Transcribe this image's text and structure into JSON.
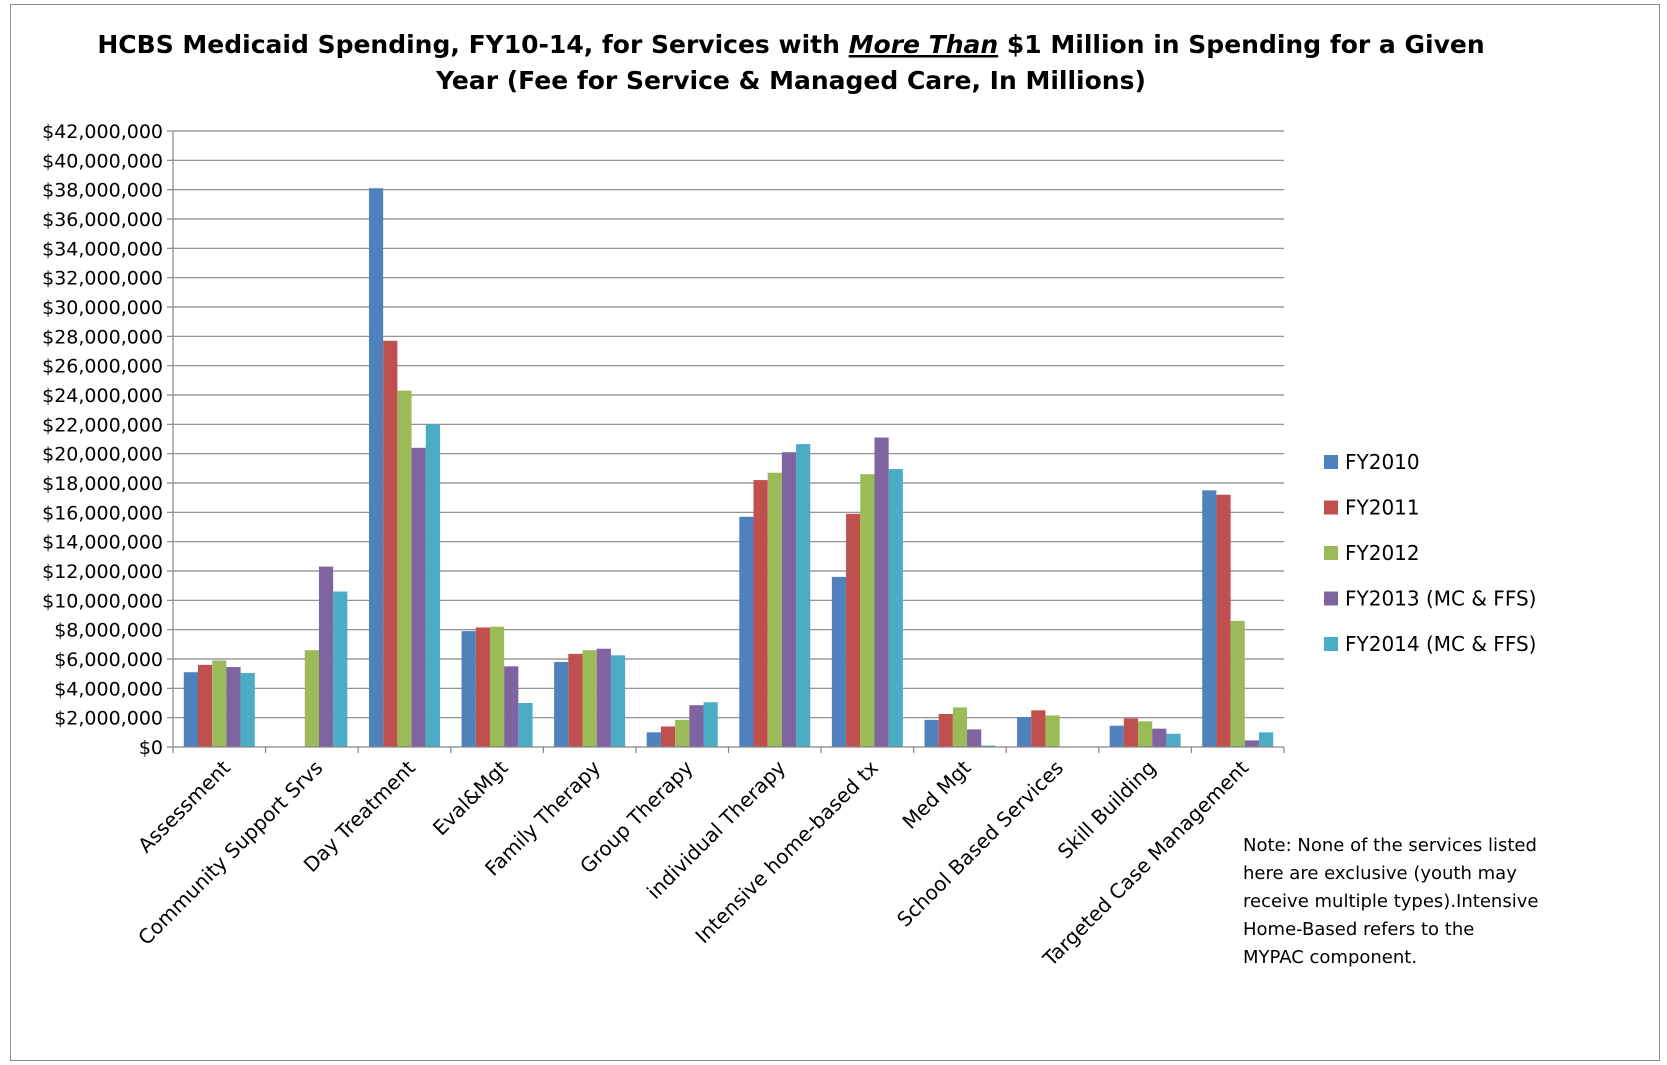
{
  "chart_data": {
    "type": "bar",
    "title_lines": [
      {
        "parts": [
          {
            "text": "HCBS Medicaid Spending, FY10-14, for Services with ",
            "emphasis": false
          },
          {
            "text": "More Than",
            "emphasis": true
          },
          {
            "text": " $1 Million in Spending for a Given",
            "emphasis": false
          }
        ]
      },
      {
        "parts": [
          {
            "text": "Year (Fee for Service & Managed Care, In Millions)",
            "emphasis": false
          }
        ]
      }
    ],
    "xlabel": "",
    "ylabel": "",
    "ylim": [
      0,
      42000000
    ],
    "ytick_step": 2000000,
    "grid": true,
    "legend_position": "right",
    "categories": [
      "Assessment",
      "Community Support Srvs",
      "Day Treatment",
      "Eval&Mgt",
      "Family Therapy",
      "Group Therapy",
      "individual Therapy",
      "Intensive home-based tx",
      "Med Mgt",
      "School Based Services",
      "Skill Building",
      "Targeted Case Management"
    ],
    "series": [
      {
        "name": "FY2010",
        "color": "#4F81BD",
        "values": [
          5100000,
          0,
          38100000,
          7900000,
          5800000,
          1000000,
          15700000,
          11600000,
          1850000,
          2050000,
          1450000,
          17500000
        ]
      },
      {
        "name": "FY2011",
        "color": "#C0504D",
        "values": [
          5600000,
          0,
          27700000,
          8150000,
          6350000,
          1400000,
          18200000,
          15900000,
          2250000,
          2500000,
          1950000,
          17200000
        ]
      },
      {
        "name": "FY2012",
        "color": "#9BBB59",
        "values": [
          5900000,
          6600000,
          24300000,
          8200000,
          6600000,
          1850000,
          18700000,
          18600000,
          2700000,
          2150000,
          1750000,
          8600000
        ]
      },
      {
        "name": "FY2013 (MC & FFS)",
        "color": "#8064A2",
        "values": [
          5450000,
          12300000,
          20400000,
          5500000,
          6700000,
          2850000,
          20100000,
          21100000,
          1200000,
          0,
          1250000,
          450000
        ]
      },
      {
        "name": "FY2014  (MC & FFS)",
        "color": "#4BACC6",
        "values": [
          5050000,
          10600000,
          22000000,
          3000000,
          6250000,
          3050000,
          20650000,
          18950000,
          100000,
          0,
          900000,
          1000000
        ]
      }
    ],
    "note_lines": [
      "Note: None of the services listed",
      "here are exclusive (youth may",
      "receive multiple types).Intensive",
      "Home-Based refers to the",
      "MYPAC component."
    ]
  }
}
